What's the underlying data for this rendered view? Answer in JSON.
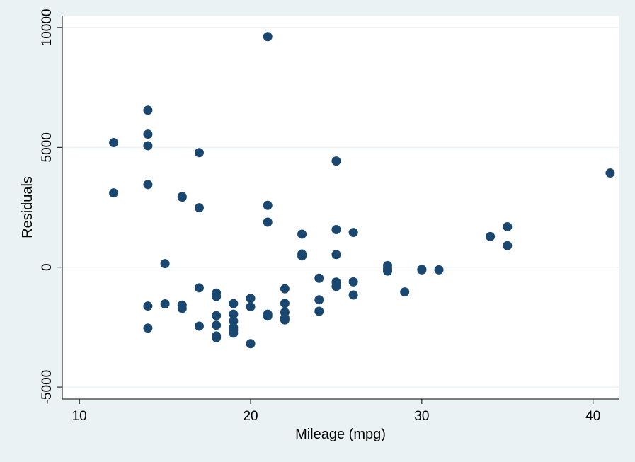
{
  "chart_data": {
    "type": "scatter",
    "title": "",
    "xlabel": "Mileage (mpg)",
    "ylabel": "Residuals",
    "xlim": [
      9,
      41.5
    ],
    "ylim": [
      -5500,
      10500
    ],
    "xticks": [
      10,
      20,
      30,
      40
    ],
    "yticks": [
      -5000,
      0,
      5000,
      10000
    ],
    "xtick_labels": [
      "10",
      "20",
      "30",
      "40"
    ],
    "ytick_labels": [
      "-5000",
      "0",
      "5000",
      "10000"
    ],
    "grid": true,
    "marker_color": "#1a476f",
    "background_color": "#eaf2f3",
    "plot_background_color": "#ffffff",
    "points": [
      [
        12,
        5200
      ],
      [
        12,
        3100
      ],
      [
        14,
        6550
      ],
      [
        14,
        5550
      ],
      [
        14,
        5070
      ],
      [
        14,
        3450
      ],
      [
        14,
        -1620
      ],
      [
        14,
        -2540
      ],
      [
        15,
        150
      ],
      [
        15,
        -1530
      ],
      [
        16,
        2950
      ],
      [
        16,
        2920
      ],
      [
        16,
        -1580
      ],
      [
        16,
        -1720
      ],
      [
        17,
        4780
      ],
      [
        17,
        2480
      ],
      [
        17,
        -860
      ],
      [
        17,
        -2460
      ],
      [
        18,
        -1080
      ],
      [
        18,
        -1220
      ],
      [
        18,
        -2020
      ],
      [
        18,
        -2420
      ],
      [
        18,
        -2870
      ],
      [
        18,
        -2940
      ],
      [
        19,
        -1520
      ],
      [
        19,
        -1960
      ],
      [
        19,
        -2250
      ],
      [
        19,
        -2520
      ],
      [
        19,
        -2620
      ],
      [
        19,
        -2750
      ],
      [
        20,
        -1300
      ],
      [
        20,
        -1650
      ],
      [
        20,
        -3190
      ],
      [
        21,
        9620
      ],
      [
        21,
        2580
      ],
      [
        21,
        1880
      ],
      [
        21,
        -1960
      ],
      [
        21,
        -2040
      ],
      [
        22,
        -900
      ],
      [
        22,
        -1510
      ],
      [
        22,
        -1880
      ],
      [
        22,
        -2120
      ],
      [
        22,
        -2200
      ],
      [
        23,
        1380
      ],
      [
        23,
        550
      ],
      [
        23,
        470
      ],
      [
        24,
        -460
      ],
      [
        24,
        -1360
      ],
      [
        24,
        -1840
      ],
      [
        25,
        4430
      ],
      [
        25,
        1570
      ],
      [
        25,
        530
      ],
      [
        25,
        -620
      ],
      [
        25,
        -800
      ],
      [
        26,
        1450
      ],
      [
        26,
        -610
      ],
      [
        26,
        -1160
      ],
      [
        28,
        70
      ],
      [
        28,
        -60
      ],
      [
        28,
        -160
      ],
      [
        29,
        -1030
      ],
      [
        30,
        -90
      ],
      [
        30,
        -110
      ],
      [
        31,
        -110
      ],
      [
        34,
        1280
      ],
      [
        35,
        1690
      ],
      [
        35,
        900
      ],
      [
        41,
        3930
      ]
    ]
  }
}
